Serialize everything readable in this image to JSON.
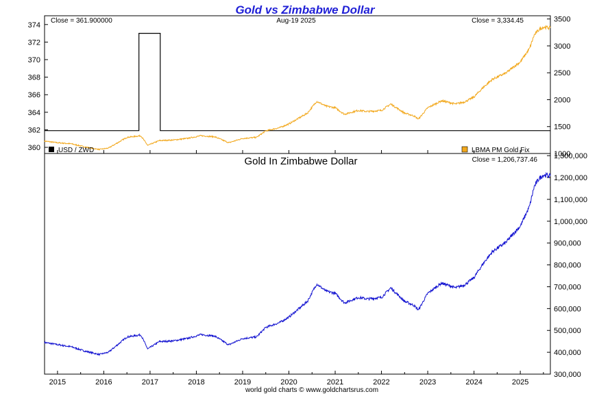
{
  "title": "Gold vs Zimbabwe Dollar",
  "footer": "world gold charts © www.goldchartsrus.com",
  "colors": {
    "title": "#1f1fd6",
    "usd_zwd": "#000000",
    "gold_usd": "#f2a81d",
    "gold_zwd": "#1010d0",
    "frame": "#000000"
  },
  "chart_data": [
    {
      "type": "line",
      "panel": "top",
      "header": {
        "left": "Close = 361.900000",
        "center": "Aug-19  2025",
        "right": "Close = 3,334.45"
      },
      "legend": {
        "left": "USD / ZWD",
        "right": "LBMA PM Gold Fix"
      },
      "x_range": [
        2014.72,
        2025.65
      ],
      "x_ticks": [
        "2015",
        "2016",
        "2017",
        "2018",
        "2019",
        "2020",
        "2021",
        "2022",
        "2023",
        "2024",
        "2025"
      ],
      "y_left": {
        "ylim": [
          359.3,
          375.0
        ],
        "ticks": [
          360,
          362,
          364,
          366,
          368,
          370,
          372,
          374
        ]
      },
      "y_right": {
        "ylim": [
          1000,
          3560
        ],
        "ticks": [
          1000,
          1500,
          2000,
          2500,
          3000,
          3500
        ]
      },
      "series": [
        {
          "name": "USD / ZWD",
          "axis": "left",
          "x": [
            2014.72,
            2016.76,
            2016.76,
            2017.22,
            2017.22,
            2025.65
          ],
          "y": [
            361.9,
            361.9,
            373.0,
            373.0,
            361.9,
            361.9
          ]
        },
        {
          "name": "LBMA PM Gold Fix",
          "axis": "right",
          "x": [
            2014.72,
            2015.0,
            2015.3,
            2015.6,
            2015.9,
            2016.1,
            2016.5,
            2016.8,
            2016.95,
            2017.2,
            2017.5,
            2017.8,
            2018.1,
            2018.4,
            2018.7,
            2019.0,
            2019.3,
            2019.5,
            2019.8,
            2020.0,
            2020.2,
            2020.4,
            2020.6,
            2020.8,
            2021.0,
            2021.2,
            2021.5,
            2021.7,
            2022.0,
            2022.2,
            2022.5,
            2022.7,
            2022.8,
            2023.0,
            2023.3,
            2023.6,
            2023.8,
            2024.0,
            2024.2,
            2024.4,
            2024.7,
            2024.9,
            2025.0,
            2025.2,
            2025.3,
            2025.4,
            2025.5,
            2025.65
          ],
          "y": [
            1230,
            1200,
            1180,
            1120,
            1075,
            1100,
            1300,
            1330,
            1150,
            1240,
            1250,
            1280,
            1330,
            1310,
            1200,
            1280,
            1300,
            1420,
            1480,
            1550,
            1650,
            1750,
            1970,
            1880,
            1850,
            1730,
            1800,
            1780,
            1800,
            1920,
            1750,
            1700,
            1640,
            1850,
            1980,
            1920,
            1960,
            2050,
            2230,
            2380,
            2500,
            2640,
            2700,
            2950,
            3200,
            3300,
            3350,
            3334
          ]
        }
      ]
    },
    {
      "type": "line",
      "panel": "bottom",
      "title": "Gold In Zimbabwe Dollar",
      "header": {
        "right": "Close = 1,206,737.46"
      },
      "x_range": [
        2014.72,
        2025.65
      ],
      "x_ticks": [
        "2015",
        "2016",
        "2017",
        "2018",
        "2019",
        "2020",
        "2021",
        "2022",
        "2023",
        "2024",
        "2025"
      ],
      "y_right": {
        "ylim": [
          300000,
          1310000
        ],
        "ticks": [
          "300,000",
          "400,000",
          "500,000",
          "600,000",
          "700,000",
          "800,000",
          "900,000",
          "1,000,000",
          "1,100,000",
          "1,200,000",
          "1,300,000"
        ],
        "tick_values": [
          300000,
          400000,
          500000,
          600000,
          700000,
          800000,
          900000,
          1000000,
          1100000,
          1200000,
          1300000
        ]
      },
      "series": [
        {
          "name": "Gold In Zimbabwe Dollar",
          "x": [
            2014.72,
            2015.0,
            2015.3,
            2015.6,
            2015.9,
            2016.1,
            2016.5,
            2016.8,
            2016.95,
            2017.2,
            2017.5,
            2017.8,
            2018.1,
            2018.4,
            2018.7,
            2019.0,
            2019.3,
            2019.5,
            2019.8,
            2020.0,
            2020.2,
            2020.4,
            2020.6,
            2020.8,
            2021.0,
            2021.2,
            2021.5,
            2021.7,
            2022.0,
            2022.2,
            2022.5,
            2022.7,
            2022.8,
            2023.0,
            2023.3,
            2023.6,
            2023.8,
            2024.0,
            2024.2,
            2024.4,
            2024.7,
            2024.9,
            2025.0,
            2025.2,
            2025.3,
            2025.4,
            2025.5,
            2025.65
          ],
          "y": [
            445000,
            435000,
            425000,
            405000,
            390000,
            400000,
            470000,
            480000,
            415000,
            449000,
            452000,
            463000,
            481000,
            474000,
            434000,
            463000,
            470000,
            514000,
            536000,
            561000,
            597000,
            633000,
            713000,
            680000,
            670000,
            626000,
            651000,
            644000,
            651000,
            695000,
            633000,
            615000,
            594000,
            670000,
            717000,
            695000,
            709000,
            742000,
            807000,
            861000,
            905000,
            955000,
            977000,
            1068000,
            1158000,
            1194000,
            1212000,
            1206737
          ]
        }
      ]
    }
  ]
}
